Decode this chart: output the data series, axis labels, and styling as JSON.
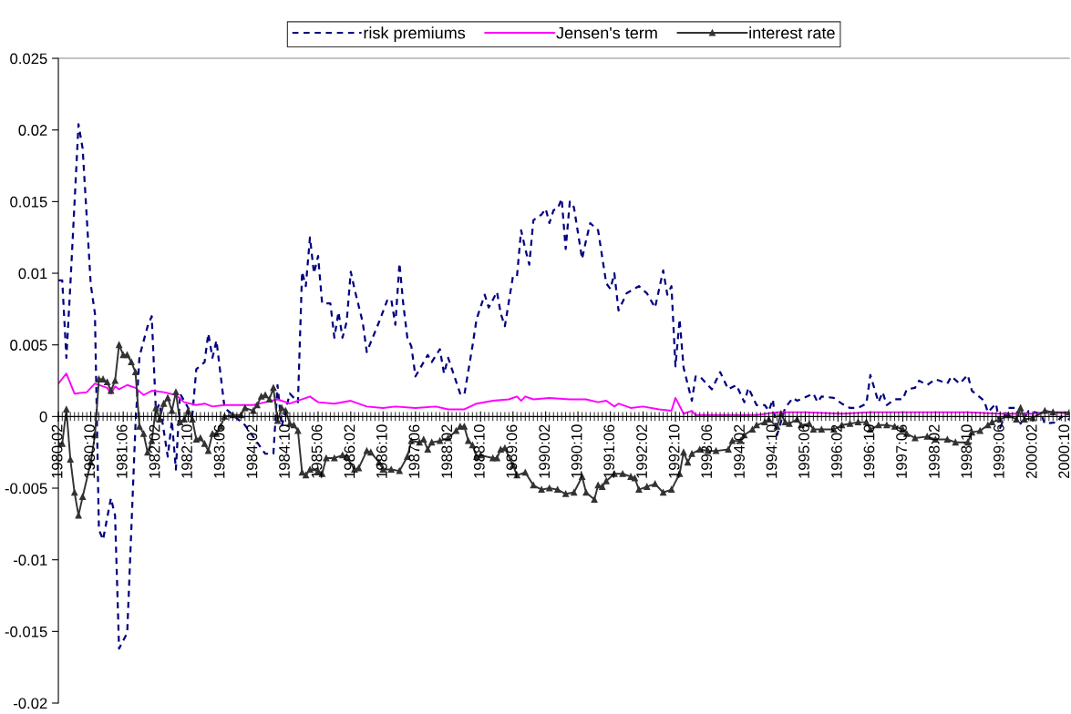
{
  "chart_data": {
    "type": "line",
    "xlim": [
      "1980-02",
      "2000-11"
    ],
    "ylim": [
      -0.02,
      0.025
    ],
    "yticks": [
      -0.02,
      -0.015,
      -0.01,
      -0.005,
      0,
      0.005,
      0.01,
      0.015,
      0.02,
      0.025
    ],
    "xticks": [
      {
        "value": "1980-02",
        "label": "1980:02"
      },
      {
        "value": "1980-10",
        "label": "1980:10"
      },
      {
        "value": "1981-06",
        "label": "1981:06"
      },
      {
        "value": "1982-02",
        "label": "1982:02"
      },
      {
        "value": "1982-10",
        "label": "1982:10"
      },
      {
        "value": "1983-06",
        "label": "1983:06"
      },
      {
        "value": "1984-02",
        "label": "1984:02"
      },
      {
        "value": "1984-10",
        "label": "1984:10"
      },
      {
        "value": "1985-06",
        "label": "1985:06"
      },
      {
        "value": "1986-02",
        "label": "1986:02"
      },
      {
        "value": "1986-10",
        "label": "1986:10"
      },
      {
        "value": "1987-06",
        "label": "1987:06"
      },
      {
        "value": "1988-02",
        "label": "1988:02"
      },
      {
        "value": "1988-10",
        "label": "1988:10"
      },
      {
        "value": "1989-06",
        "label": "1989:06"
      },
      {
        "value": "1990-02",
        "label": "1990:02"
      },
      {
        "value": "1990-10",
        "label": "1990:10"
      },
      {
        "value": "1991-06",
        "label": "1991:06"
      },
      {
        "value": "1992-02",
        "label": "1992:02"
      },
      {
        "value": "1992-10",
        "label": "1992:10"
      },
      {
        "value": "1993-06",
        "label": "1993:06"
      },
      {
        "value": "1994-02",
        "label": "1994:02"
      },
      {
        "value": "1994-10",
        "label": "1994:10"
      },
      {
        "value": "1995-06",
        "label": "1995:06"
      },
      {
        "value": "1996-02",
        "label": "1996:02"
      },
      {
        "value": "1996-10",
        "label": "1996:10"
      },
      {
        "value": "1997-06",
        "label": "1997:06"
      },
      {
        "value": "1998-02",
        "label": "1998:02"
      },
      {
        "value": "1998-10",
        "label": "1998:10"
      },
      {
        "value": "1999-06",
        "label": "1999:06"
      },
      {
        "value": "2000-02",
        "label": "2000:02"
      },
      {
        "value": "2000-10",
        "label": "2000:10"
      }
    ],
    "grid": false,
    "legend": "top",
    "series": [
      {
        "name": "risk premiums",
        "color": "#000080",
        "line_style": "dashed",
        "marker": "none",
        "x": [
          "1980-02",
          "1980-03",
          "1980-04",
          "1980-05",
          "1980-07",
          "1980-08",
          "1980-10",
          "1980-11",
          "1980-12",
          "1981-01",
          "1981-03",
          "1981-04",
          "1981-05",
          "1981-07",
          "1981-09",
          "1981-10",
          "1981-12",
          "1982-01",
          "1982-02",
          "1982-03",
          "1982-05",
          "1982-06",
          "1982-07",
          "1982-08",
          "1982-11",
          "1982-12",
          "1983-02",
          "1983-03",
          "1983-04",
          "1983-05",
          "1983-07",
          "1983-12",
          "1984-05",
          "1984-07",
          "1984-08",
          "1984-09",
          "1984-11",
          "1985-01",
          "1985-02",
          "1985-03",
          "1985-04",
          "1985-05",
          "1985-06",
          "1985-07",
          "1985-09",
          "1985-10",
          "1985-11",
          "1985-12",
          "1986-01",
          "1986-02",
          "1986-03",
          "1986-05",
          "1986-06",
          "1986-09",
          "1986-11",
          "1986-12",
          "1987-01",
          "1987-02",
          "1987-03",
          "1987-04",
          "1987-05",
          "1987-06",
          "1987-09",
          "1987-10",
          "1987-12",
          "1988-01",
          "1988-02",
          "1988-05",
          "1988-06",
          "1988-08",
          "1988-09",
          "1988-11",
          "1988-12",
          "1989-02",
          "1989-03",
          "1989-04",
          "1989-06",
          "1989-07",
          "1989-08",
          "1989-09",
          "1989-10",
          "1989-11",
          "1990-01",
          "1990-02",
          "1990-03",
          "1990-04",
          "1990-05",
          "1990-06",
          "1990-07",
          "1990-08",
          "1990-09",
          "1990-11",
          "1990-12",
          "1991-01",
          "1991-03",
          "1991-05",
          "1991-06",
          "1991-07",
          "1991-08",
          "1991-10",
          "1992-01",
          "1992-03",
          "1992-05",
          "1992-07",
          "1992-08",
          "1992-09",
          "1992-10",
          "1992-11",
          "1992-12",
          "1993-02",
          "1993-03",
          "1993-04",
          "1993-07",
          "1993-09",
          "1993-11",
          "1994-01",
          "1994-03",
          "1994-04",
          "1994-06",
          "1994-08",
          "1994-09",
          "1994-10",
          "1994-11",
          "1995-01",
          "1995-03",
          "1995-04",
          "1995-08",
          "1995-09",
          "1995-10",
          "1996-01",
          "1996-03",
          "1996-05",
          "1996-07",
          "1996-09",
          "1996-10",
          "1996-12",
          "1997-01",
          "1997-02",
          "1997-04",
          "1997-06",
          "1997-07",
          "1997-09",
          "1997-10",
          "1997-12",
          "1998-02",
          "1998-05",
          "1998-06",
          "1998-08",
          "1998-10",
          "1998-11",
          "1999-02",
          "1999-03",
          "1999-05",
          "1999-06",
          "1999-08",
          "1999-10",
          "1999-11",
          "2000-01",
          "2000-04",
          "2000-05",
          "2000-08",
          "2000-09",
          "2000-11"
        ],
        "values": [
          0.0095,
          0.0095,
          0.0041,
          0.0092,
          0.0204,
          0.0187,
          0.0092,
          0.0072,
          -0.0079,
          -0.0086,
          -0.0057,
          -0.0069,
          -0.0162,
          -0.0151,
          -0.0006,
          0.0042,
          0.0063,
          0.007,
          0.0004,
          0.0009,
          -0.0028,
          -0.0003,
          -0.0037,
          0.0016,
          0.0001,
          0.0033,
          0.0038,
          0.0058,
          0.0041,
          0.0053,
          0.0006,
          -0.0006,
          -0.0026,
          -0.0026,
          0.0022,
          -0.0007,
          0.0016,
          0.001,
          0.0101,
          0.0091,
          0.0125,
          0.01,
          0.0112,
          0.0079,
          0.0079,
          0.0055,
          0.0073,
          0.0055,
          0.0066,
          0.0101,
          0.0089,
          0.0066,
          0.0045,
          0.0066,
          0.0081,
          0.0082,
          0.0064,
          0.0107,
          0.0079,
          0.0055,
          0.0049,
          0.0028,
          0.0043,
          0.0038,
          0.0047,
          0.003,
          0.0041,
          0.0016,
          0.0015,
          0.0049,
          0.0068,
          0.0085,
          0.0076,
          0.0087,
          0.0072,
          0.0063,
          0.0098,
          0.0098,
          0.013,
          0.0117,
          0.0106,
          0.0137,
          0.0141,
          0.0145,
          0.0135,
          0.0144,
          0.0145,
          0.0152,
          0.0117,
          0.015,
          0.0146,
          0.011,
          0.0123,
          0.0135,
          0.013,
          0.0093,
          0.0089,
          0.01,
          0.0074,
          0.0086,
          0.0091,
          0.0086,
          0.0076,
          0.0102,
          0.0085,
          0.0091,
          0.0035,
          0.0068,
          0.0034,
          0.0011,
          0.0028,
          0.0028,
          0.0019,
          0.0031,
          0.0019,
          0.0022,
          0.001,
          0.002,
          0.0008,
          0.0008,
          0.0004,
          0.0012,
          -0.0013,
          0.0006,
          0.0013,
          0.0011,
          0.0016,
          0.001,
          0.0014,
          0.0013,
          0.0009,
          0.0006,
          0.0006,
          0.0009,
          0.0029,
          0.001,
          0.0017,
          0.0008,
          0.0012,
          0.0012,
          0.0019,
          0.002,
          0.0025,
          0.0022,
          0.0026,
          0.0023,
          0.0028,
          0.0023,
          0.0029,
          0.0018,
          0.0011,
          0.0003,
          0.0009,
          -0.0008,
          0.0006,
          0.0006,
          -0.0005,
          0.0004,
          0.0002,
          -0.0005,
          -0.0004,
          0.0,
          -0.0002
        ]
      },
      {
        "name": "Jensen's term",
        "color": "#ff00ff",
        "line_style": "solid",
        "marker": "none",
        "x": [
          "1980-02",
          "1980-04",
          "1980-06",
          "1980-09",
          "1980-11",
          "1981-02",
          "1981-03",
          "1981-04",
          "1981-05",
          "1981-07",
          "1981-09",
          "1981-11",
          "1982-01",
          "1982-04",
          "1982-07",
          "1982-09",
          "1982-12",
          "1983-02",
          "1983-04",
          "1983-07",
          "1984-02",
          "1984-05",
          "1984-08",
          "1984-11",
          "1985-04",
          "1985-06",
          "1985-10",
          "1986-02",
          "1986-06",
          "1986-10",
          "1987-01",
          "1987-06",
          "1987-11",
          "1988-02",
          "1988-06",
          "1988-09",
          "1989-01",
          "1989-05",
          "1989-07",
          "1989-08",
          "1989-09",
          "1989-11",
          "1990-03",
          "1990-08",
          "1990-12",
          "1991-03",
          "1991-05",
          "1991-07",
          "1991-08",
          "1991-11",
          "1992-02",
          "1992-06",
          "1992-09",
          "1992-10",
          "1992-12",
          "1993-02",
          "1993-03",
          "1994-06",
          "1994-11",
          "1995-06",
          "1996-03",
          "1996-10",
          "1998-01",
          "1998-10",
          "1999-06",
          "2000-02",
          "2000-06",
          "2000-11"
        ],
        "values": [
          0.0023,
          0.003,
          0.0016,
          0.0017,
          0.0023,
          0.002,
          0.0016,
          0.0021,
          0.0019,
          0.0022,
          0.002,
          0.0015,
          0.0018,
          0.0017,
          0.0015,
          0.001,
          0.0008,
          0.0009,
          0.0007,
          0.0008,
          0.0008,
          0.001,
          0.0012,
          0.0009,
          0.0014,
          0.001,
          0.0009,
          0.0011,
          0.0007,
          0.0006,
          0.0007,
          0.0006,
          0.0007,
          0.0005,
          0.0005,
          0.0009,
          0.0011,
          0.0012,
          0.0014,
          0.0011,
          0.0014,
          0.0012,
          0.0013,
          0.0012,
          0.0012,
          0.001,
          0.0011,
          0.0007,
          0.0009,
          0.0006,
          0.0007,
          0.0005,
          0.0004,
          0.0013,
          0.0002,
          0.0004,
          0.0001,
          0.0001,
          0.0003,
          0.0003,
          0.0002,
          0.0003,
          0.0003,
          0.0003,
          0.0002,
          0.0002,
          0.0003,
          0.0002
        ]
      },
      {
        "name": "interest rate",
        "color": "#333333",
        "line_style": "solid",
        "marker": "triangle",
        "x": [
          "1980-02",
          "1980-03",
          "1980-04",
          "1980-05",
          "1980-06",
          "1980-07",
          "1980-08",
          "1980-10",
          "1980-11",
          "1980-12",
          "1981-01",
          "1981-02",
          "1981-03",
          "1981-04",
          "1981-05",
          "1981-06",
          "1981-07",
          "1981-08",
          "1981-09",
          "1981-10",
          "1981-11",
          "1981-12",
          "1982-01",
          "1982-02",
          "1982-03",
          "1982-04",
          "1982-05",
          "1982-06",
          "1982-07",
          "1982-08",
          "1982-09",
          "1982-10",
          "1982-11",
          "1982-12",
          "1983-01",
          "1983-02",
          "1983-03",
          "1983-04",
          "1983-05",
          "1983-06",
          "1983-07",
          "1983-09",
          "1983-11",
          "1983-12",
          "1984-02",
          "1984-03",
          "1984-04",
          "1984-05",
          "1984-06",
          "1984-07",
          "1984-08",
          "1984-09",
          "1984-10",
          "1984-11",
          "1984-12",
          "1985-01",
          "1985-02",
          "1985-03",
          "1985-04",
          "1985-06",
          "1985-07",
          "1985-08",
          "1985-10",
          "1985-12",
          "1986-01",
          "1986-03",
          "1986-04",
          "1986-06",
          "1986-07",
          "1986-09",
          "1986-10",
          "1986-12",
          "1987-02",
          "1987-04",
          "1987-05",
          "1987-07",
          "1987-08",
          "1987-09",
          "1987-10",
          "1987-12",
          "1988-02",
          "1988-04",
          "1988-05",
          "1988-06",
          "1988-07",
          "1988-08",
          "1988-09",
          "1988-10",
          "1989-01",
          "1989-02",
          "1989-03",
          "1989-04",
          "1989-06",
          "1989-07",
          "1989-09",
          "1989-11",
          "1990-01",
          "1990-03",
          "1990-05",
          "1990-07",
          "1990-09",
          "1990-11",
          "1990-12",
          "1991-02",
          "1991-03",
          "1991-04",
          "1991-05",
          "1991-07",
          "1991-09",
          "1991-11",
          "1991-12",
          "1992-01",
          "1992-03",
          "1992-05",
          "1992-07",
          "1992-09",
          "1992-11",
          "1992-12",
          "1993-01",
          "1993-02",
          "1993-04",
          "1993-06",
          "1993-08",
          "1993-11",
          "1993-12",
          "1994-02",
          "1994-03",
          "1994-05",
          "1994-06",
          "1994-08",
          "1994-09",
          "1994-11",
          "1994-12",
          "1995-01",
          "1995-02",
          "1995-04",
          "1995-05",
          "1995-07",
          "1995-08",
          "1995-10",
          "1996-01",
          "1996-03",
          "1996-05",
          "1996-07",
          "1996-09",
          "1996-10",
          "1996-12",
          "1997-02",
          "1997-04",
          "1997-06",
          "1997-07",
          "1997-09",
          "1997-12",
          "1998-02",
          "1998-05",
          "1998-07",
          "1998-10",
          "1998-11",
          "1999-01",
          "1999-03",
          "1999-04",
          "1999-06",
          "1999-08",
          "1999-10",
          "1999-11",
          "1999-12",
          "2000-02",
          "2000-05",
          "2000-07",
          "2000-11"
        ],
        "values": [
          -0.0019,
          -0.0019,
          0.0005,
          -0.003,
          -0.0053,
          -0.0069,
          -0.0056,
          -0.0032,
          -0.0013,
          0.0026,
          0.0026,
          0.0024,
          0.0018,
          0.0025,
          0.005,
          0.0043,
          0.0043,
          0.0038,
          0.0031,
          -0.0007,
          -0.0012,
          -0.0025,
          -0.0017,
          0.0006,
          -0.0002,
          0.0009,
          0.0013,
          0.0004,
          0.0017,
          -0.0004,
          -0.0002,
          0.0004,
          -0.0002,
          -0.0016,
          -0.0015,
          -0.0019,
          -0.0024,
          -0.0012,
          -0.0012,
          -0.0007,
          0.0,
          0.0001,
          0.0001,
          0.0006,
          0.0004,
          0.0008,
          0.0014,
          0.0015,
          0.0012,
          0.002,
          -0.0003,
          0.0006,
          0.0004,
          -0.0005,
          -0.0006,
          -0.001,
          -0.0039,
          -0.0041,
          -0.0037,
          -0.0038,
          -0.004,
          -0.0029,
          -0.0029,
          -0.0027,
          -0.0028,
          -0.0037,
          -0.0036,
          -0.0024,
          -0.0025,
          -0.0032,
          -0.0037,
          -0.0037,
          -0.0038,
          -0.0028,
          -0.0017,
          -0.0018,
          -0.0016,
          -0.0023,
          -0.0018,
          -0.0017,
          -0.0015,
          -0.001,
          -0.0007,
          -0.0007,
          -0.0017,
          -0.002,
          -0.0028,
          -0.0027,
          -0.0029,
          -0.0029,
          -0.0023,
          -0.0022,
          -0.0034,
          -0.0041,
          -0.0039,
          -0.0048,
          -0.0051,
          -0.005,
          -0.0051,
          -0.0054,
          -0.0053,
          -0.0042,
          -0.0053,
          -0.0058,
          -0.0048,
          -0.0049,
          -0.0045,
          -0.004,
          -0.004,
          -0.0042,
          -0.0043,
          -0.0051,
          -0.0049,
          -0.0047,
          -0.0053,
          -0.0051,
          -0.004,
          -0.0025,
          -0.0032,
          -0.0026,
          -0.0023,
          -0.0024,
          -0.0024,
          -0.0023,
          -0.0017,
          -0.0017,
          -0.0013,
          -0.0009,
          -0.0006,
          -0.0004,
          -0.0002,
          -0.0007,
          0.0002,
          -0.0004,
          -0.0005,
          -0.0002,
          -0.0006,
          -0.0005,
          -0.0009,
          -0.0009,
          -0.0009,
          -0.0006,
          -0.0005,
          -0.0004,
          -0.0004,
          -0.0009,
          -0.0006,
          -0.0006,
          -0.0007,
          -0.0009,
          -0.0012,
          -0.0015,
          -0.0014,
          -0.0016,
          -0.0016,
          -0.0018,
          -0.0018,
          -0.0011,
          -0.001,
          -0.0006,
          -0.0004,
          -0.0002,
          0.0001,
          -0.0002,
          0.0006,
          -0.0002,
          -0.0001,
          0.0004,
          0.0003,
          0.0003
        ]
      }
    ]
  }
}
